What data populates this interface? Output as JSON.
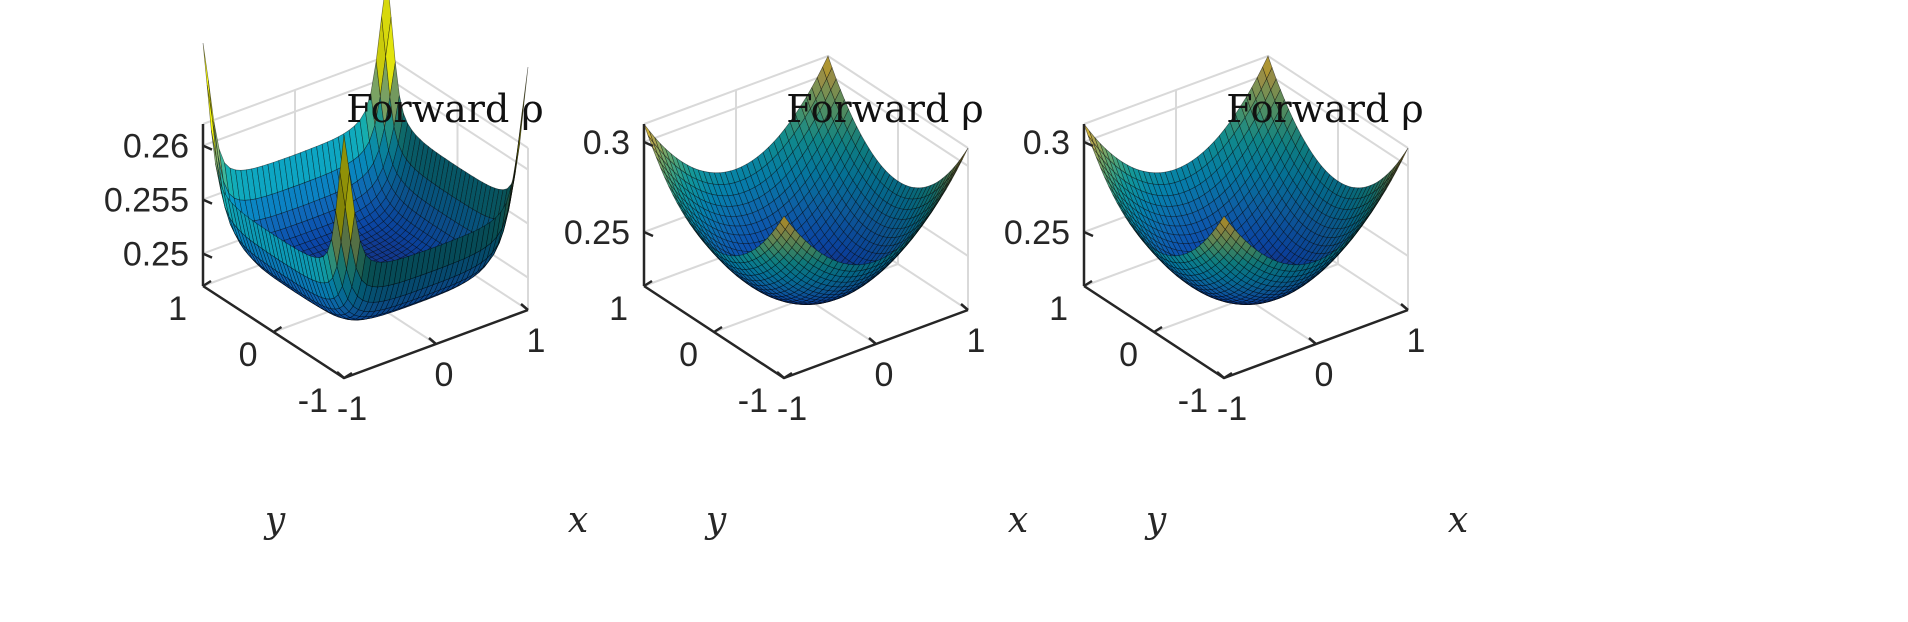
{
  "chart_data": [
    {
      "type": "surface",
      "title": "Forward ρ",
      "xlabel": "x",
      "ylabel": "y",
      "xlim": [
        -1,
        1
      ],
      "ylim": [
        -1,
        1
      ],
      "zlim": [
        0.247,
        0.262
      ],
      "x_ticks": [
        "-1",
        "0",
        "1"
      ],
      "y_ticks": [
        "-1",
        "0",
        "1"
      ],
      "z_ticks": [
        "0.25",
        "0.255",
        "0.26"
      ],
      "z_tick_values": [
        0.25,
        0.255,
        0.26
      ],
      "surface": {
        "shape": "flat basin with raised edges and corner spikes",
        "z_min": 0.248,
        "z_edge": 0.255,
        "z_max": 0.2615
      },
      "colormap": "parula (dark blue to yellow)"
    },
    {
      "type": "surface",
      "title": "Forward ρ",
      "xlabel": "x",
      "ylabel": "y",
      "xlim": [
        -1,
        1
      ],
      "ylim": [
        -1,
        1
      ],
      "zlim": [
        0.22,
        0.31
      ],
      "x_ticks": [
        "-1",
        "0",
        "1"
      ],
      "y_ticks": [
        "-1",
        "0",
        "1"
      ],
      "z_ticks": [
        "0.25",
        "0.3"
      ],
      "z_tick_values": [
        0.25,
        0.3
      ],
      "surface": {
        "shape": "paraboloid bowl",
        "z_min": 0.22,
        "z_max": 0.31
      },
      "colormap": "parula (dark blue to yellow)"
    },
    {
      "type": "surface",
      "title": "Forward ρ",
      "xlabel": "x",
      "ylabel": "y",
      "xlim": [
        -1,
        1
      ],
      "ylim": [
        -1,
        1
      ],
      "zlim": [
        0.22,
        0.31
      ],
      "x_ticks": [
        "-1",
        "0",
        "1"
      ],
      "y_ticks": [
        "-1",
        "0",
        "1"
      ],
      "z_ticks": [
        "0.25",
        "0.3"
      ],
      "z_tick_values": [
        0.25,
        0.3
      ],
      "surface": {
        "shape": "paraboloid bowl",
        "z_min": 0.22,
        "z_max": 0.31
      },
      "colormap": "parula (dark blue to yellow)"
    }
  ]
}
